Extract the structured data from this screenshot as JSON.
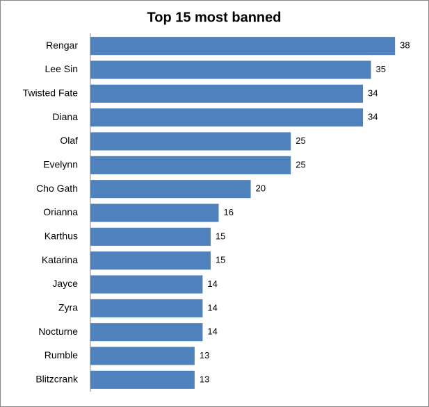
{
  "chart_data": {
    "type": "bar",
    "orientation": "horizontal",
    "title": "Top 15 most banned",
    "categories": [
      "Rengar",
      "Lee Sin",
      "Twisted Fate",
      "Diana",
      "Olaf",
      "Evelynn",
      "Cho Gath",
      "Orianna",
      "Karthus",
      "Katarina",
      "Jayce",
      "Zyra",
      "Nocturne",
      "Rumble",
      "Blitzcrank"
    ],
    "values": [
      38,
      35,
      34,
      34,
      25,
      25,
      20,
      16,
      15,
      15,
      14,
      14,
      14,
      13,
      13
    ],
    "color": "#4f81bd",
    "data_labels": true
  }
}
